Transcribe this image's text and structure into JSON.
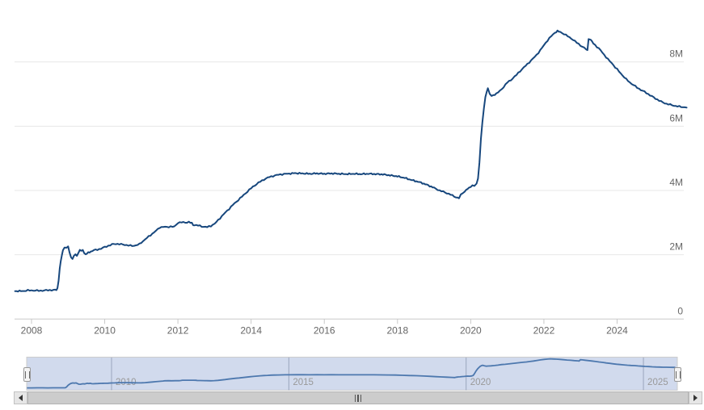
{
  "chart_data": {
    "type": "line",
    "title": "",
    "grid": true,
    "legend": false,
    "x_axis": {
      "range": [
        2007.55,
        2025.95
      ],
      "ticks": [
        2008,
        2010,
        2012,
        2014,
        2016,
        2018,
        2020,
        2022,
        2024
      ],
      "tick_labels": [
        "2008",
        "2010",
        "2012",
        "2014",
        "2016",
        "2018",
        "2020",
        "2022",
        "2024"
      ]
    },
    "y_axis": {
      "position": "right",
      "range": [
        0,
        9.6
      ],
      "ticks": [
        0,
        2,
        4,
        6,
        8
      ],
      "tick_labels": [
        "0",
        "2M",
        "4M",
        "6M",
        "8M"
      ]
    },
    "series": [
      {
        "points": [
          [
            2007.55,
            0.87
          ],
          [
            2007.75,
            0.87
          ],
          [
            2007.9,
            0.89
          ],
          [
            2008.05,
            0.89
          ],
          [
            2008.2,
            0.88
          ],
          [
            2008.35,
            0.89
          ],
          [
            2008.5,
            0.9
          ],
          [
            2008.6,
            0.9
          ],
          [
            2008.68,
            0.91
          ],
          [
            2008.71,
            0.96
          ],
          [
            2008.74,
            1.21
          ],
          [
            2008.77,
            1.56
          ],
          [
            2008.8,
            1.8
          ],
          [
            2008.83,
            2.0
          ],
          [
            2008.86,
            2.14
          ],
          [
            2008.9,
            2.24
          ],
          [
            2008.96,
            2.2
          ],
          [
            2009.0,
            2.26
          ],
          [
            2009.04,
            2.07
          ],
          [
            2009.08,
            1.92
          ],
          [
            2009.12,
            1.88
          ],
          [
            2009.16,
            1.95
          ],
          [
            2009.2,
            2.02
          ],
          [
            2009.24,
            1.97
          ],
          [
            2009.28,
            2.06
          ],
          [
            2009.32,
            2.16
          ],
          [
            2009.36,
            2.1
          ],
          [
            2009.4,
            2.16
          ],
          [
            2009.44,
            2.05
          ],
          [
            2009.48,
            2.02
          ],
          [
            2009.55,
            2.06
          ],
          [
            2009.62,
            2.1
          ],
          [
            2009.7,
            2.14
          ],
          [
            2009.8,
            2.16
          ],
          [
            2009.9,
            2.19
          ],
          [
            2010.0,
            2.24
          ],
          [
            2010.1,
            2.28
          ],
          [
            2010.2,
            2.32
          ],
          [
            2010.3,
            2.34
          ],
          [
            2010.4,
            2.33
          ],
          [
            2010.5,
            2.32
          ],
          [
            2010.65,
            2.29
          ],
          [
            2010.75,
            2.28
          ],
          [
            2010.85,
            2.29
          ],
          [
            2010.95,
            2.33
          ],
          [
            2011.05,
            2.43
          ],
          [
            2011.15,
            2.52
          ],
          [
            2011.25,
            2.61
          ],
          [
            2011.35,
            2.7
          ],
          [
            2011.45,
            2.79
          ],
          [
            2011.5,
            2.85
          ],
          [
            2011.6,
            2.87
          ],
          [
            2011.7,
            2.86
          ],
          [
            2011.8,
            2.88
          ],
          [
            2011.9,
            2.87
          ],
          [
            2011.95,
            2.93
          ],
          [
            2012.0,
            3.0
          ],
          [
            2012.1,
            3.01
          ],
          [
            2012.2,
            3.0
          ],
          [
            2012.3,
            3.02
          ],
          [
            2012.38,
            2.98
          ],
          [
            2012.42,
            2.93
          ],
          [
            2012.5,
            2.92
          ],
          [
            2012.6,
            2.9
          ],
          [
            2012.7,
            2.87
          ],
          [
            2012.8,
            2.86
          ],
          [
            2012.9,
            2.9
          ],
          [
            2013.0,
            2.96
          ],
          [
            2013.1,
            3.08
          ],
          [
            2013.2,
            3.2
          ],
          [
            2013.3,
            3.32
          ],
          [
            2013.4,
            3.43
          ],
          [
            2013.5,
            3.55
          ],
          [
            2013.6,
            3.65
          ],
          [
            2013.7,
            3.76
          ],
          [
            2013.8,
            3.86
          ],
          [
            2013.9,
            3.97
          ],
          [
            2014.0,
            4.07
          ],
          [
            2014.1,
            4.16
          ],
          [
            2014.2,
            4.24
          ],
          [
            2014.3,
            4.31
          ],
          [
            2014.4,
            4.37
          ],
          [
            2014.5,
            4.42
          ],
          [
            2014.6,
            4.45
          ],
          [
            2014.7,
            4.48
          ],
          [
            2014.8,
            4.5
          ],
          [
            2014.9,
            4.51
          ],
          [
            2015.0,
            4.52
          ],
          [
            2015.2,
            4.54
          ],
          [
            2015.4,
            4.53
          ],
          [
            2015.6,
            4.52
          ],
          [
            2015.8,
            4.53
          ],
          [
            2016.0,
            4.52
          ],
          [
            2016.2,
            4.53
          ],
          [
            2016.4,
            4.52
          ],
          [
            2016.6,
            4.51
          ],
          [
            2016.8,
            4.52
          ],
          [
            2017.0,
            4.51
          ],
          [
            2017.2,
            4.52
          ],
          [
            2017.4,
            4.51
          ],
          [
            2017.6,
            4.5
          ],
          [
            2017.8,
            4.47
          ],
          [
            2018.0,
            4.44
          ],
          [
            2018.2,
            4.39
          ],
          [
            2018.4,
            4.32
          ],
          [
            2018.6,
            4.26
          ],
          [
            2018.8,
            4.18
          ],
          [
            2019.0,
            4.08
          ],
          [
            2019.15,
            4.0
          ],
          [
            2019.3,
            3.94
          ],
          [
            2019.45,
            3.87
          ],
          [
            2019.6,
            3.79
          ],
          [
            2019.68,
            3.76
          ],
          [
            2019.73,
            3.86
          ],
          [
            2019.78,
            3.93
          ],
          [
            2019.83,
            3.96
          ],
          [
            2019.88,
            4.02
          ],
          [
            2019.95,
            4.07
          ],
          [
            2020.0,
            4.13
          ],
          [
            2020.05,
            4.16
          ],
          [
            2020.1,
            4.14
          ],
          [
            2020.16,
            4.21
          ],
          [
            2020.2,
            4.36
          ],
          [
            2020.24,
            4.9
          ],
          [
            2020.28,
            5.6
          ],
          [
            2020.32,
            6.12
          ],
          [
            2020.36,
            6.55
          ],
          [
            2020.4,
            6.9
          ],
          [
            2020.44,
            7.1
          ],
          [
            2020.47,
            7.17
          ],
          [
            2020.52,
            7.01
          ],
          [
            2020.57,
            6.93
          ],
          [
            2020.62,
            6.97
          ],
          [
            2020.7,
            7.01
          ],
          [
            2020.8,
            7.1
          ],
          [
            2020.9,
            7.22
          ],
          [
            2021.0,
            7.36
          ],
          [
            2021.1,
            7.44
          ],
          [
            2021.2,
            7.54
          ],
          [
            2021.3,
            7.66
          ],
          [
            2021.4,
            7.77
          ],
          [
            2021.5,
            7.88
          ],
          [
            2021.6,
            7.99
          ],
          [
            2021.7,
            8.1
          ],
          [
            2021.8,
            8.22
          ],
          [
            2021.9,
            8.36
          ],
          [
            2022.0,
            8.52
          ],
          [
            2022.1,
            8.67
          ],
          [
            2022.2,
            8.8
          ],
          [
            2022.3,
            8.91
          ],
          [
            2022.37,
            8.96
          ],
          [
            2022.45,
            8.93
          ],
          [
            2022.55,
            8.87
          ],
          [
            2022.65,
            8.8
          ],
          [
            2022.75,
            8.73
          ],
          [
            2022.85,
            8.64
          ],
          [
            2022.95,
            8.56
          ],
          [
            2023.05,
            8.47
          ],
          [
            2023.15,
            8.4
          ],
          [
            2023.19,
            8.36
          ],
          [
            2023.22,
            8.73
          ],
          [
            2023.28,
            8.68
          ],
          [
            2023.35,
            8.58
          ],
          [
            2023.45,
            8.47
          ],
          [
            2023.55,
            8.36
          ],
          [
            2023.65,
            8.22
          ],
          [
            2023.75,
            8.08
          ],
          [
            2023.85,
            7.97
          ],
          [
            2023.95,
            7.83
          ],
          [
            2024.05,
            7.71
          ],
          [
            2024.15,
            7.58
          ],
          [
            2024.25,
            7.46
          ],
          [
            2024.35,
            7.36
          ],
          [
            2024.45,
            7.28
          ],
          [
            2024.55,
            7.2
          ],
          [
            2024.65,
            7.13
          ],
          [
            2024.75,
            7.07
          ],
          [
            2024.85,
            7.0
          ],
          [
            2024.95,
            6.93
          ],
          [
            2025.05,
            6.86
          ],
          [
            2025.15,
            6.8
          ],
          [
            2025.25,
            6.74
          ],
          [
            2025.35,
            6.7
          ],
          [
            2025.45,
            6.67
          ],
          [
            2025.55,
            6.64
          ],
          [
            2025.65,
            6.62
          ],
          [
            2025.75,
            6.6
          ],
          [
            2025.85,
            6.59
          ],
          [
            2025.9,
            6.58
          ]
        ]
      }
    ]
  },
  "navigator": {
    "tick_labels": [
      {
        "year": 2010,
        "label": "2010"
      },
      {
        "year": 2015,
        "label": "2015"
      },
      {
        "year": 2020,
        "label": "2020"
      },
      {
        "year": 2025,
        "label": "2025"
      }
    ],
    "value_range": [
      0,
      9.1
    ]
  },
  "icons": {
    "scrollbar_left": "arrow-left",
    "scrollbar_right": "arrow-right",
    "scrollbar_grip": "rifles",
    "navigator_handle": "drag-grip"
  },
  "colors": {
    "series_line": "#17477d",
    "navigator_line": "#4d78ae",
    "navigator_mask": "rgba(102,133,194,0.3)",
    "navigator_outline": "#cccccc",
    "navigator_gridline": "#9aa5bd",
    "gridline": "#e7e7e7",
    "axis_line": "#c9c9c9",
    "axis_label": "#666666",
    "navigator_label": "#999999"
  }
}
